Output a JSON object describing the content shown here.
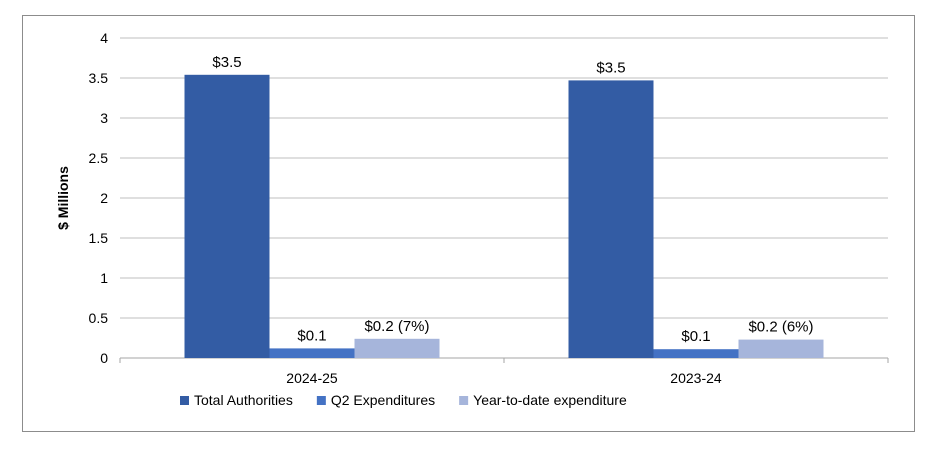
{
  "chart_data": {
    "type": "bar",
    "title": "",
    "xlabel": "",
    "ylabel": "$ Millions",
    "ylim": [
      0,
      4
    ],
    "yticks": [
      "0",
      "0.5",
      "1",
      "1.5",
      "2",
      "2.5",
      "3",
      "3.5",
      "4"
    ],
    "grid": true,
    "legend_position": "bottom",
    "categories": [
      "2024-25",
      "2023-24"
    ],
    "series": [
      {
        "name": "Total Authorities",
        "color": "#335CA4",
        "values": [
          3.54,
          3.47
        ],
        "labels": [
          "$3.5",
          "$3.5"
        ]
      },
      {
        "name": "Q2 Expenditures",
        "color": "#4472C4",
        "values": [
          0.12,
          0.11
        ],
        "labels": [
          "$0.1",
          "$0.1"
        ]
      },
      {
        "name": "Year-to-date expenditure",
        "color": "#A6B5DB",
        "values": [
          0.24,
          0.23
        ],
        "labels": [
          "$0.2 (7%)",
          "$0.2 (6%)"
        ]
      }
    ]
  }
}
